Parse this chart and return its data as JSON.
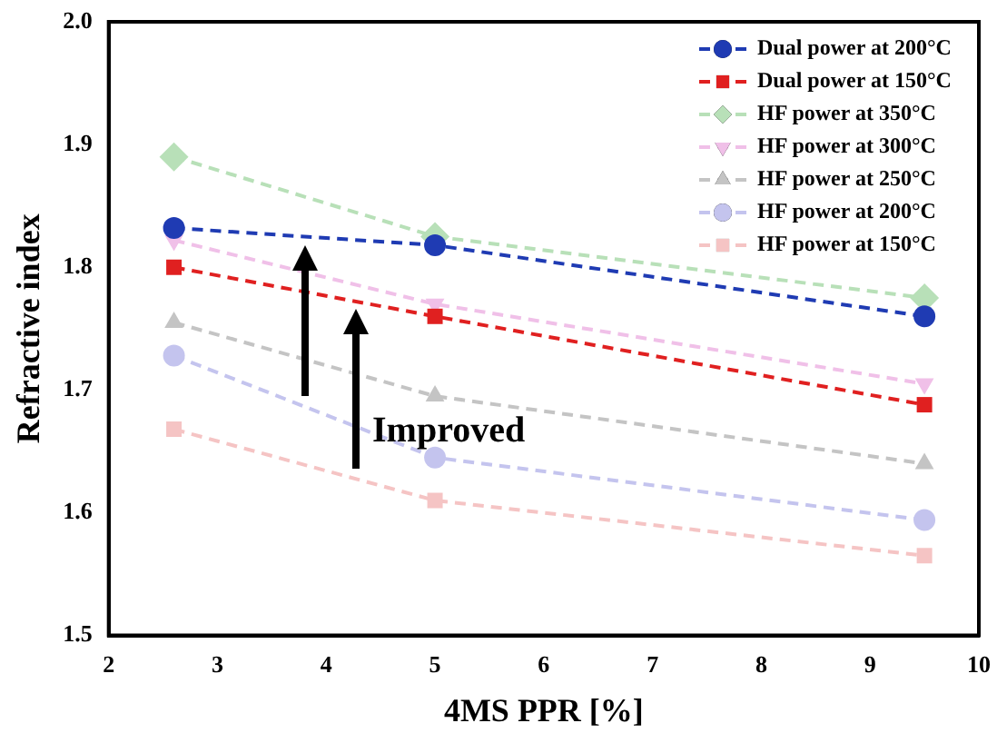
{
  "chart_data": {
    "type": "line",
    "xlabel": "4MS PPR [%]",
    "ylabel": "Refractive index",
    "x": [
      2.6,
      5,
      9.5
    ],
    "xlim": [
      2,
      10
    ],
    "xticks": [
      2,
      3,
      4,
      5,
      6,
      7,
      8,
      9,
      10
    ],
    "ylim": [
      1.5,
      2.0
    ],
    "yticks": [
      1.5,
      1.6,
      1.7,
      1.8,
      1.9,
      {
        "value": 2.0,
        "label": "2.0"
      }
    ],
    "grid": false,
    "legend": "top right",
    "line_style": "dashed",
    "annotations": [
      "Improved"
    ],
    "series": [
      {
        "name": "Dual power at 200°C",
        "color": "#1f3bb3",
        "marker": "circle",
        "values": [
          1.832,
          1.818,
          1.76
        ]
      },
      {
        "name": "Dual power at 150°C",
        "color": "#e02020",
        "marker": "square",
        "values": [
          1.8,
          1.76,
          1.688
        ]
      },
      {
        "name": "HF power at 350°C",
        "color": "#b8e0b8",
        "marker": "diamond",
        "values": [
          1.89,
          1.825,
          1.775
        ]
      },
      {
        "name": "HF power at 300°C",
        "color": "#f0c0e8",
        "marker": "triangle_down",
        "values": [
          1.822,
          1.77,
          1.705
        ]
      },
      {
        "name": "HF power at 250°C",
        "color": "#c4c4c4",
        "marker": "triangle",
        "values": [
          1.755,
          1.695,
          1.64
        ]
      },
      {
        "name": "HF power at 200°C",
        "color": "#c4c4ee",
        "marker": "circle",
        "values": [
          1.728,
          1.645,
          1.594
        ]
      },
      {
        "name": "HF power at 150°C",
        "color": "#f5c4c4",
        "marker": "square",
        "values": [
          1.668,
          1.61,
          1.565
        ]
      }
    ]
  }
}
